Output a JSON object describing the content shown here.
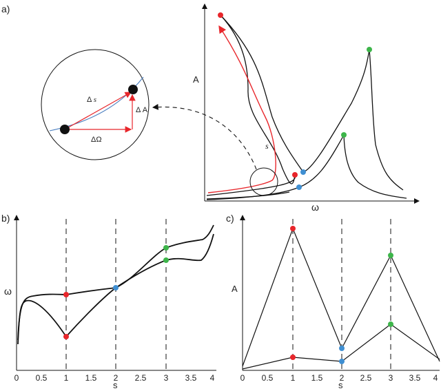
{
  "panel_a": {
    "label": "a)",
    "y_axis_label": "A",
    "x_axis_label": "ω",
    "curve_label": "s",
    "inset": {
      "delta_s": "Δ s",
      "delta_a": "Δ A",
      "delta_omega": "ΔΩ"
    }
  },
  "panel_b": {
    "label": "b)",
    "y_axis_label": "ω",
    "x_axis_label": "s",
    "ticks": [
      "0",
      "0.5",
      "1",
      "1.5",
      "2",
      "2.5",
      "3",
      "3.5",
      "4"
    ]
  },
  "panel_c": {
    "label": "c)",
    "y_axis_label": "A",
    "x_axis_label": "s",
    "ticks": [
      "0",
      "0.5",
      "1",
      "1.5",
      "2",
      "2.5",
      "3",
      "3.5",
      "4"
    ]
  },
  "colors": {
    "red": "#e8262b",
    "blue": "#3f8fd2",
    "green": "#3db54a",
    "black": "#111111",
    "inset_curve": "#4a7fc0"
  }
}
